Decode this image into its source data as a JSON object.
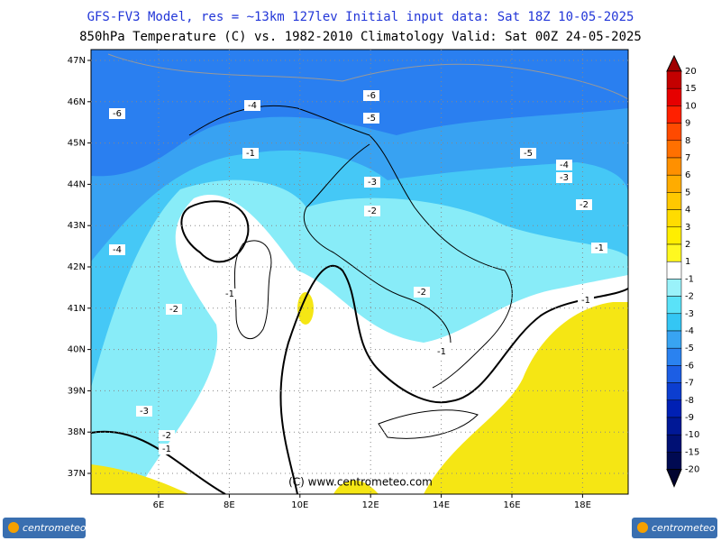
{
  "header": {
    "line1": "GFS-FV3 Model, res = ~13km 127lev    Initial input data: Sat 18Z 10-05-2025",
    "line2": "850hPa Temperature (C) vs. 1982-2010 Climatology  Valid: Sat 00Z 24-05-2025"
  },
  "map": {
    "lat_ticks": [
      {
        "value": 47,
        "label": "47N"
      },
      {
        "value": 46,
        "label": "46N"
      },
      {
        "value": 45,
        "label": "45N"
      },
      {
        "value": 44,
        "label": "44N"
      },
      {
        "value": 43,
        "label": "43N"
      },
      {
        "value": 42,
        "label": "42N"
      },
      {
        "value": 41,
        "label": "41N"
      },
      {
        "value": 40,
        "label": "40N"
      },
      {
        "value": 39,
        "label": "39N"
      },
      {
        "value": 38,
        "label": "38N"
      },
      {
        "value": 37,
        "label": "37N"
      }
    ],
    "lon_ticks": [
      {
        "value": 6,
        "label": "6E"
      },
      {
        "value": 8,
        "label": "8E"
      },
      {
        "value": 10,
        "label": "10E"
      },
      {
        "value": 12,
        "label": "12E"
      },
      {
        "value": 14,
        "label": "14E"
      },
      {
        "value": 16,
        "label": "16E"
      },
      {
        "value": 18,
        "label": "18E"
      }
    ],
    "contour_labels": [
      -6,
      -4,
      -6,
      -5,
      -1,
      -5,
      -4,
      -3,
      -3,
      -2,
      -2,
      -4,
      -1,
      -1,
      -2,
      -2,
      -1,
      -1,
      -3,
      -2,
      -1
    ],
    "credit": "(C) www.centrometeo.com"
  },
  "colorbar": {
    "levels": [
      20,
      15,
      10,
      9,
      8,
      7,
      6,
      5,
      4,
      3,
      2,
      1,
      -1,
      -2,
      -3,
      -4,
      -5,
      -6,
      -7,
      -8,
      -9,
      -10,
      -15,
      -20
    ],
    "colors": [
      "#a00000",
      "#c40000",
      "#e60000",
      "#ff2000",
      "#ff4a00",
      "#ff7000",
      "#ff9000",
      "#ffac00",
      "#ffc800",
      "#ffdc00",
      "#ffee00",
      "#fff820",
      "#ffffff",
      "#9af2fa",
      "#5ae2f8",
      "#34c6f4",
      "#38a4f2",
      "#2a82f0",
      "#1c5ee4",
      "#0c3ed0",
      "#0020b4",
      "#001896",
      "#001074",
      "#000a52",
      "#000430"
    ]
  },
  "logo": {
    "left": "centrometeo",
    "right": "centrometeo"
  }
}
